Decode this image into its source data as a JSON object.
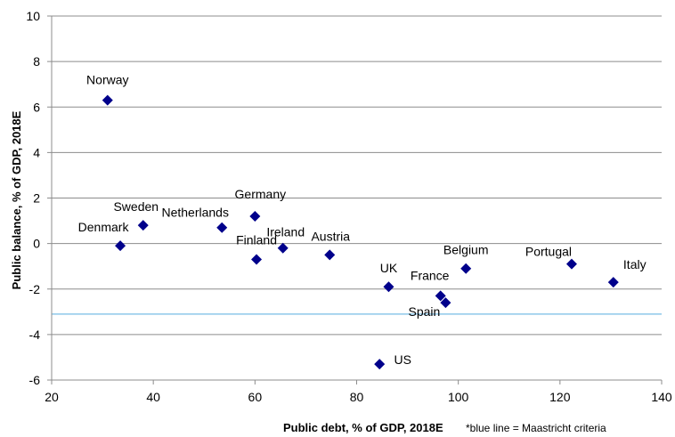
{
  "chart_data": {
    "type": "scatter",
    "xlabel": "Public debt, % of GDP, 2018E",
    "ylabel": "Public balance, % of GDP, 2018E",
    "note": "*blue line = Maastricht criteria",
    "xlim": [
      20,
      140
    ],
    "ylim": [
      -6,
      10
    ],
    "xticks": [
      "20",
      "40",
      "60",
      "80",
      "100",
      "120",
      "140"
    ],
    "yticks": [
      "-6",
      "-4",
      "-2",
      "0",
      "2",
      "4",
      "6",
      "8",
      "10"
    ],
    "grid": "horizontal",
    "reference_line": {
      "y": -3.1,
      "color": "#8ec8ea"
    },
    "marker_color": "#00008b",
    "points": [
      {
        "label": "Norway",
        "x": 31,
        "y": 6.3
      },
      {
        "label": "Sweden",
        "x": 38,
        "y": 0.8
      },
      {
        "label": "Denmark",
        "x": 33.5,
        "y": -0.1
      },
      {
        "label": "Netherlands",
        "x": 53.5,
        "y": 0.7
      },
      {
        "label": "Germany",
        "x": 60,
        "y": 1.2
      },
      {
        "label": "Finland",
        "x": 60.3,
        "y": -0.7
      },
      {
        "label": "Ireland",
        "x": 65.5,
        "y": -0.2
      },
      {
        "label": "Austria",
        "x": 74.7,
        "y": -0.5
      },
      {
        "label": "UK",
        "x": 86.3,
        "y": -1.9
      },
      {
        "label": "France",
        "x": 96.5,
        "y": -2.3
      },
      {
        "label": "Spain",
        "x": 97.5,
        "y": -2.6
      },
      {
        "label": "Belgium",
        "x": 101.5,
        "y": -1.1
      },
      {
        "label": "Portugal",
        "x": 122.3,
        "y": -0.9
      },
      {
        "label": "Italy",
        "x": 130.5,
        "y": -1.7
      },
      {
        "label": "US",
        "x": 84.5,
        "y": -5.3
      }
    ]
  }
}
